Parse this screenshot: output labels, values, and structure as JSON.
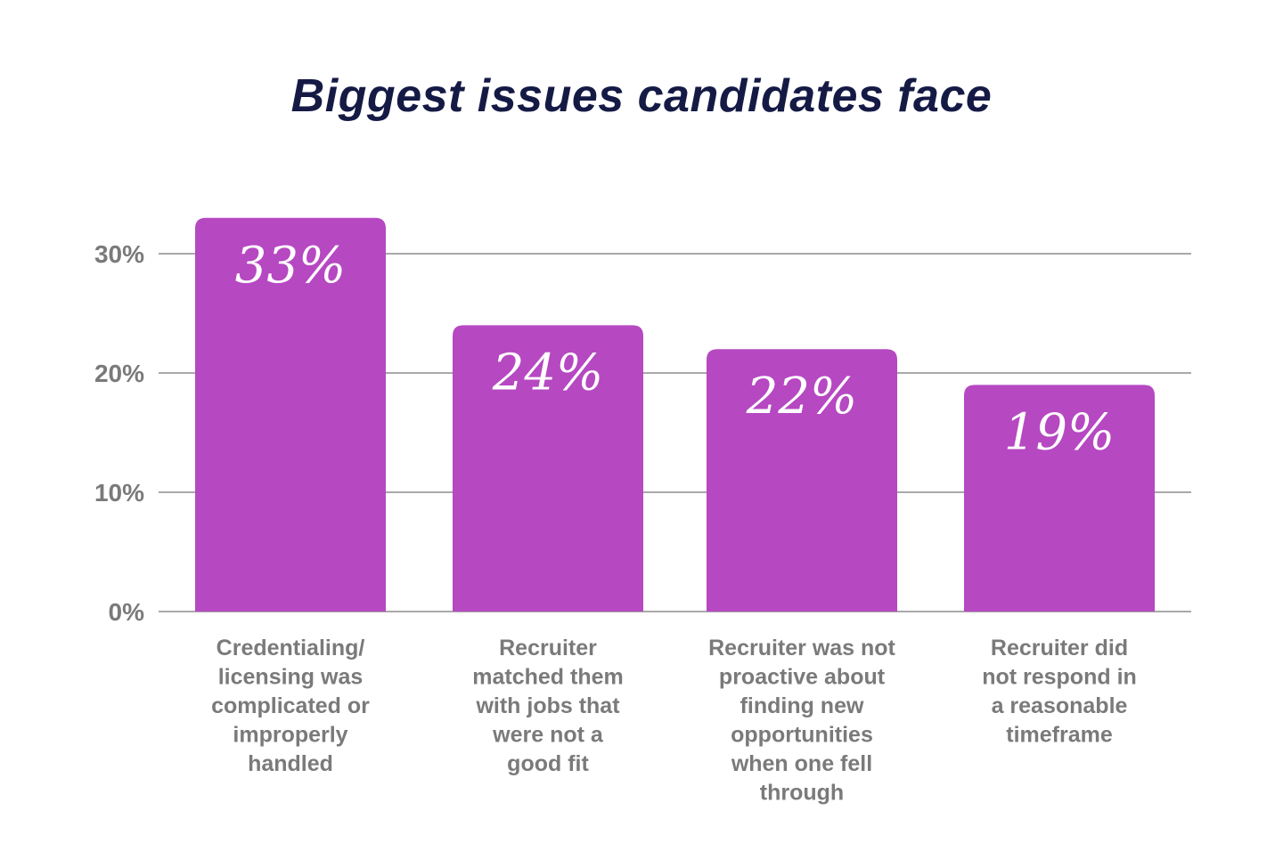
{
  "chart_data": {
    "type": "bar",
    "title": "Biggest issues candidates face",
    "categories": [
      [
        "Credentialing/",
        "licensing was",
        "complicated or",
        "improperly",
        "handled"
      ],
      [
        "Recruiter",
        "matched them",
        "with jobs that",
        "were not a",
        "good fit"
      ],
      [
        "Recruiter was not",
        "proactive about",
        "finding new",
        "opportunities",
        "when one fell",
        "through"
      ],
      [
        "Recruiter did",
        "not respond in",
        "a reasonable",
        "timeframe"
      ]
    ],
    "values": [
      33,
      24,
      22,
      19
    ],
    "value_labels": [
      "33%",
      "24%",
      "22%",
      "19%"
    ],
    "y_ticks": [
      0,
      10,
      20,
      30
    ],
    "y_tick_labels": [
      "0%",
      "10%",
      "20%",
      "30%"
    ],
    "ylim": [
      0,
      33
    ],
    "grid": true,
    "colors": {
      "bar": "#b648c2",
      "grid": "#a9a9a9",
      "title": "#151a45",
      "tick_text": "#7a7a7a",
      "value_text": "#ffffff"
    }
  }
}
